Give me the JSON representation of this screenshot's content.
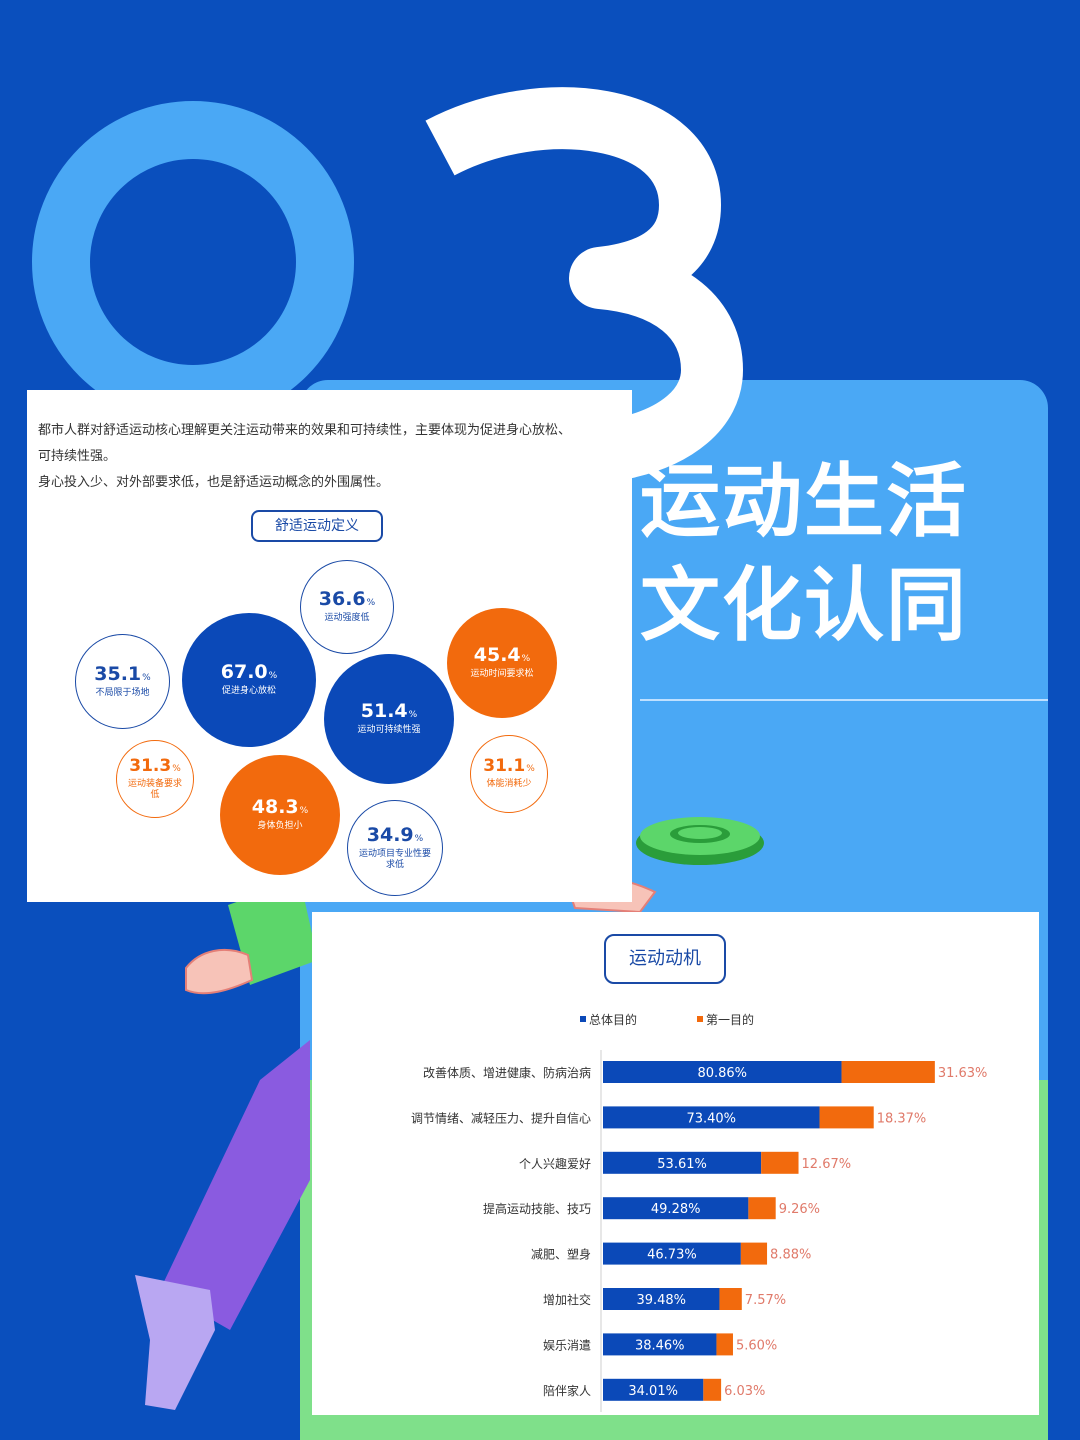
{
  "big_number": "03",
  "headline": {
    "line1": "运动生活",
    "line2": "文化认同"
  },
  "intro": {
    "line1": "都市人群对舒适运动核心理解更关注运动带来的效果和可持续性，主要体现为促进身心放松、",
    "line2": "可持续性强。",
    "line3": "身心投入少、对外部要求低，也是舒适运动概念的外围属性。"
  },
  "colors": {
    "background": "#0a4fbd",
    "light_blue": "#4aa8f5",
    "navy": "#0b49b8",
    "orange": "#f26a0d",
    "green": "#5cd66a",
    "purple": "#8a5be0"
  },
  "chart_data": [
    {
      "type": "bubble",
      "title": "舒适运动定义",
      "unit": "%",
      "items": [
        {
          "id": "b1",
          "value": "36.6",
          "label": "运动强度低",
          "style": "outline-blue"
        },
        {
          "id": "b2",
          "value": "67.0",
          "label": "促进身心放松",
          "style": "solid-blue"
        },
        {
          "id": "b3",
          "value": "35.1",
          "label": "不局限于场地",
          "style": "outline-blue"
        },
        {
          "id": "b4",
          "value": "45.4",
          "label": "运动时间要求松",
          "style": "solid-orange"
        },
        {
          "id": "b5",
          "value": "51.4",
          "label": "运动可持续性强",
          "style": "solid-blue"
        },
        {
          "id": "b6",
          "value": "31.3",
          "label": "运动装备要求低",
          "style": "outline-orange"
        },
        {
          "id": "b7",
          "value": "31.1",
          "label": "体能消耗少",
          "style": "outline-orange"
        },
        {
          "id": "b8",
          "value": "48.3",
          "label": "身体负担小",
          "style": "solid-orange"
        },
        {
          "id": "b9",
          "value": "34.9",
          "label": "运动项目专业性要求低",
          "style": "outline-blue"
        }
      ]
    },
    {
      "type": "bar",
      "orientation": "horizontal",
      "stacked": true,
      "title": "运动动机",
      "legend_position": "top",
      "categories": [
        "改善体质、增进健康、防病治病",
        "调节情绪、减轻压力、提升自信心",
        "个人兴趣爱好",
        "提高运动技能、技巧",
        "减肥、塑身",
        "增加社交",
        "娱乐消遣",
        "陪伴家人"
      ],
      "series": [
        {
          "name": "总体目的",
          "color": "#0b49b8",
          "values": [
            80.86,
            73.4,
            53.61,
            49.28,
            46.73,
            39.48,
            38.46,
            34.01
          ],
          "labels": [
            "80.86%",
            "73.40%",
            "53.61%",
            "49.28%",
            "46.73%",
            "39.48%",
            "38.46%",
            "34.01%"
          ]
        },
        {
          "name": "第一目的",
          "color": "#f26a0d",
          "values": [
            31.63,
            18.37,
            12.67,
            9.26,
            8.88,
            7.57,
            5.6,
            6.03
          ],
          "labels": [
            "31.63%",
            "18.37%",
            "12.67%",
            "9.26%",
            "8.88%",
            "7.57%",
            "5.60%",
            "6.03%"
          ]
        }
      ]
    }
  ]
}
